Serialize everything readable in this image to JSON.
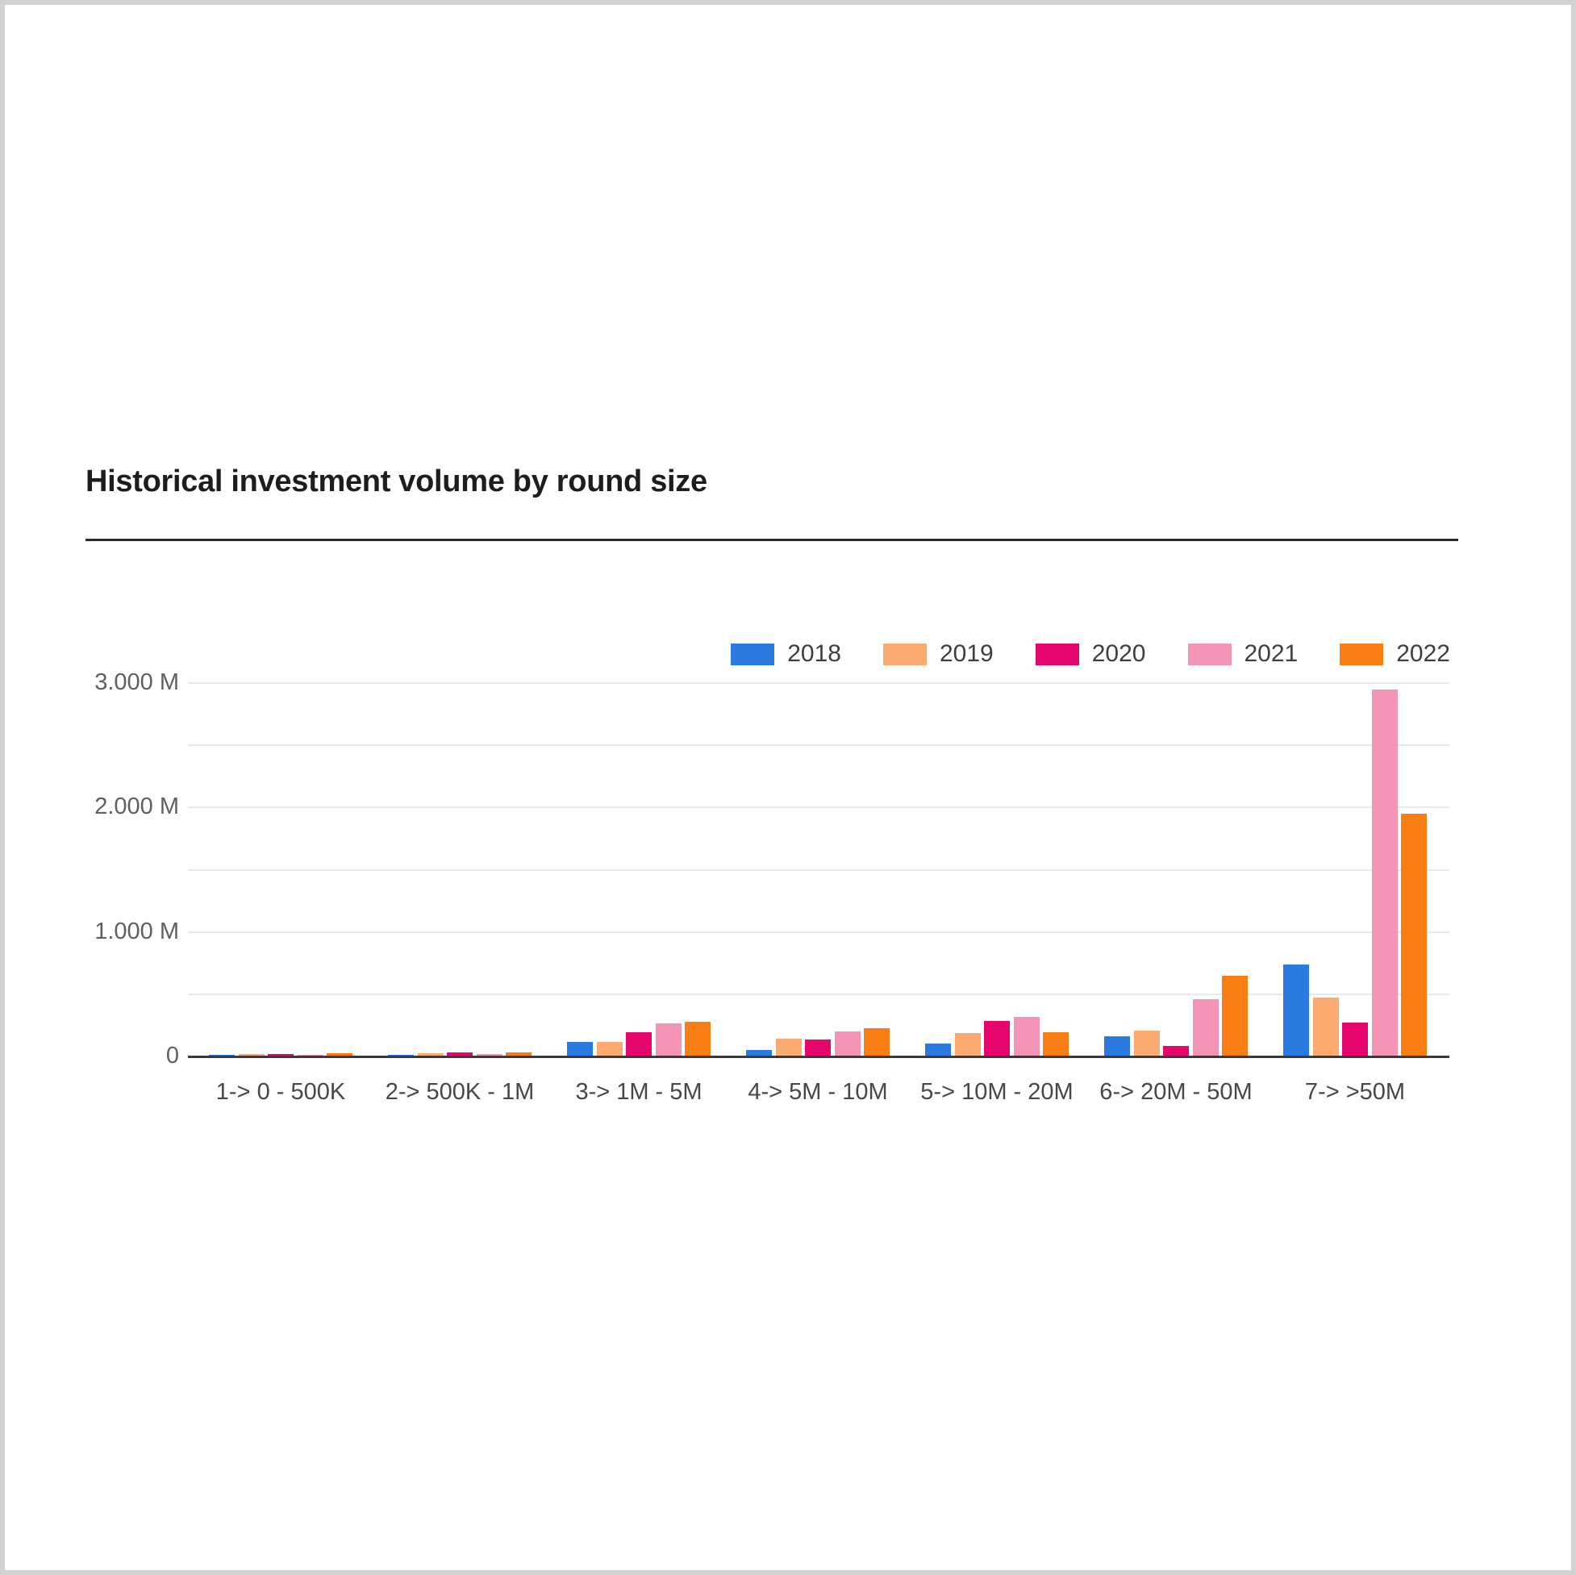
{
  "window": {
    "background": "#d2d2d2",
    "card_background": "#ffffff"
  },
  "header": {
    "title": "Historical investment volume by round size"
  },
  "chart_data": {
    "type": "bar",
    "title": "Historical investment volume by round size",
    "value_unit": "M",
    "categories": [
      "1-> 0 - 500K",
      "2-> 500K - 1M",
      "3-> 1M - 5M",
      "4-> 5M - 10M",
      "5-> 10M - 20M",
      "6-> 20M - 50M",
      "7-> >50M"
    ],
    "series": [
      {
        "name": "2018",
        "color": "#2b7ae0",
        "values": [
          6,
          8,
          112,
          48,
          97,
          155,
          735
        ]
      },
      {
        "name": "2019",
        "color": "#fbab6f",
        "values": [
          11,
          19,
          108,
          134,
          183,
          202,
          468
        ]
      },
      {
        "name": "2020",
        "color": "#e5066c",
        "values": [
          15,
          28,
          187,
          127,
          280,
          80,
          265
        ]
      },
      {
        "name": "2021",
        "color": "#f394b7",
        "values": [
          9,
          15,
          256,
          192,
          308,
          456,
          2942
        ]
      },
      {
        "name": "2022",
        "color": "#f87d12",
        "values": [
          21,
          26,
          273,
          219,
          187,
          643,
          1945
        ]
      }
    ],
    "y_axis": {
      "range": [
        0,
        3000
      ],
      "minor_gridline_step": 500,
      "grid": true,
      "ticks": [
        {
          "value": 0,
          "label": "0"
        },
        {
          "value": 1000,
          "label": "1.000 M"
        },
        {
          "value": 2000,
          "label": "2.000 M"
        },
        {
          "value": 3000,
          "label": "3.000 M"
        }
      ]
    },
    "legend": {
      "position": "top-right"
    }
  }
}
